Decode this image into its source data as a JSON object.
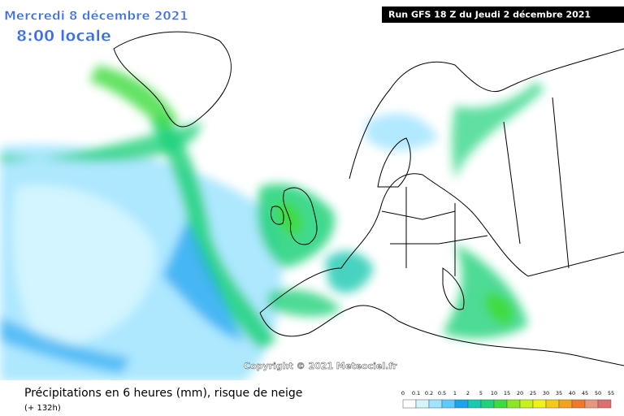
{
  "header": {
    "date": "Mercredi 8 décembre 2021",
    "time": "8:00 locale",
    "run": "Run GFS 18 Z du Jeudi 2 décembre 2021"
  },
  "copyright": "Copyright © 2021 Meteociel.fr",
  "footer": {
    "title": "Précipitations en 6 heures (mm), risque de neige",
    "lead": "(+ 132h)"
  },
  "legend": {
    "ticks": [
      0,
      0.1,
      0.2,
      0.5,
      1,
      2,
      5,
      10,
      15,
      20,
      25,
      30,
      35,
      40,
      45,
      50,
      55
    ],
    "colors": [
      "#ffffff",
      "#d2f5ff",
      "#9fe4ff",
      "#5ccbff",
      "#1ea2f0",
      "#19c8b0",
      "#1fd27a",
      "#3cdc3c",
      "#8ce628",
      "#c8f01e",
      "#f0f01e",
      "#f5c81e",
      "#f5a01e",
      "#f07828",
      "#e8967d",
      "#e06e6e"
    ]
  }
}
